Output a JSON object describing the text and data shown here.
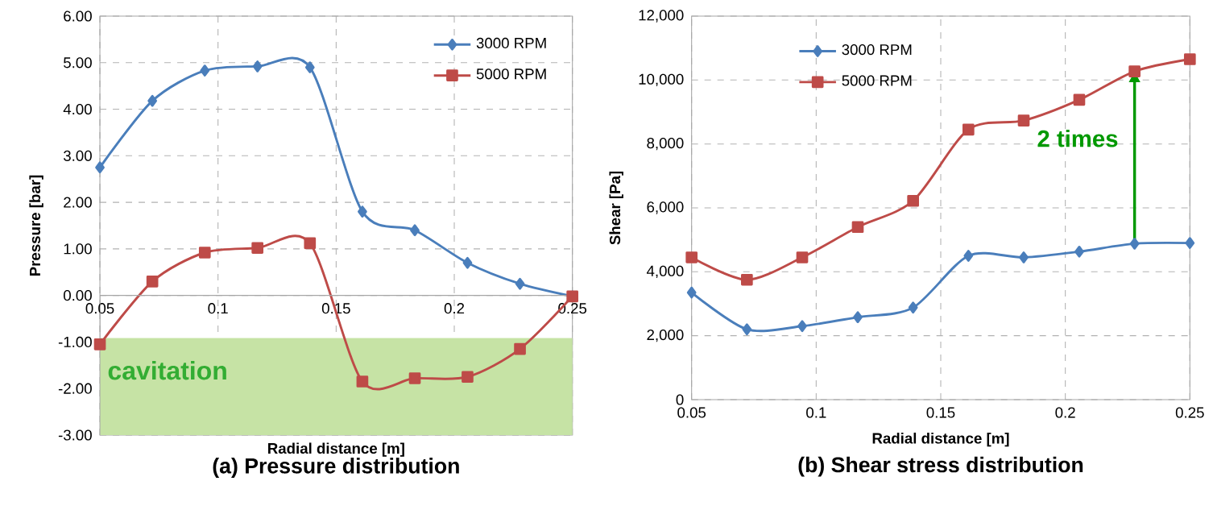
{
  "chart_data": [
    {
      "type": "line",
      "title": "(a) Pressure distribution",
      "xlabel": "Radial distance [m]",
      "ylabel": "Pressure [bar]",
      "x": [
        0.05,
        0.0722,
        0.0944,
        0.1167,
        0.1389,
        0.1611,
        0.1833,
        0.2056,
        0.2278,
        0.25
      ],
      "series": [
        {
          "name": "3000 RPM",
          "color": "#4a7ebb",
          "marker": "diamond",
          "values": [
            2.75,
            4.18,
            4.83,
            4.92,
            4.9,
            1.8,
            1.4,
            0.7,
            0.25,
            -0.02
          ]
        },
        {
          "name": "5000 RPM",
          "color": "#be4b48",
          "marker": "square",
          "values": [
            -1.05,
            0.3,
            0.92,
            1.02,
            1.12,
            -1.85,
            -1.78,
            -1.75,
            -1.15,
            -0.02
          ]
        }
      ],
      "xlim": [
        0.05,
        0.25
      ],
      "xticks": [
        0.05,
        0.1,
        0.15,
        0.2,
        0.25
      ],
      "ylim": [
        -3,
        6
      ],
      "yticks": [
        {
          "value": -3,
          "label": "-3.00"
        },
        {
          "value": -2,
          "label": "-2.00"
        },
        {
          "value": -1,
          "label": "-1.00"
        },
        {
          "value": 0,
          "label": "0.00"
        },
        {
          "value": 1,
          "label": "1.00"
        },
        {
          "value": 2,
          "label": "2.00"
        },
        {
          "value": 3,
          "label": "3.00"
        },
        {
          "value": 4,
          "label": "4.00"
        },
        {
          "value": 5,
          "label": "5.00"
        },
        {
          "value": 6,
          "label": "6.00"
        }
      ],
      "bands": [
        {
          "axis": "y",
          "from": -3,
          "to": -0.92,
          "label": "cavitation",
          "color": "#c6e3a5"
        }
      ],
      "grid": true,
      "legend": "top right"
    },
    {
      "type": "line",
      "title": "(b) Shear stress distribution",
      "xlabel": "Radial distance [m]",
      "ylabel": "Shear [Pa]",
      "x": [
        0.05,
        0.0722,
        0.0944,
        0.1167,
        0.1389,
        0.1611,
        0.1833,
        0.2056,
        0.2278,
        0.25
      ],
      "series": [
        {
          "name": "3000 RPM",
          "color": "#4a7ebb",
          "marker": "diamond",
          "values": [
            3350,
            2200,
            2300,
            2580,
            2880,
            4500,
            4450,
            4630,
            4880,
            4900
          ]
        },
        {
          "name": "5000 RPM",
          "color": "#be4b48",
          "marker": "square",
          "values": [
            4450,
            3750,
            4450,
            5400,
            6220,
            8450,
            8730,
            9380,
            10270,
            10650
          ]
        }
      ],
      "xlim": [
        0.05,
        0.25
      ],
      "xticks": [
        0.05,
        0.1,
        0.15,
        0.2,
        0.25
      ],
      "ylim": [
        0,
        12000
      ],
      "yticks": [
        0,
        {
          "value": 2000,
          "label": "2,000"
        },
        {
          "value": 4000,
          "label": "4,000"
        },
        {
          "value": 6000,
          "label": "6,000"
        },
        {
          "value": 8000,
          "label": "8,000"
        },
        {
          "value": 10000,
          "label": "10,000"
        },
        {
          "value": 12000,
          "label": "12,000"
        }
      ],
      "annotations": [
        {
          "text": "2 times",
          "x": 0.2278,
          "y": 10270
        }
      ],
      "grid": true,
      "legend": "top left"
    }
  ]
}
